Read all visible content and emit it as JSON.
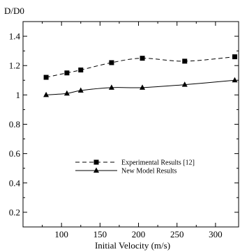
{
  "chart_data": {
    "type": "line",
    "ylabel": "D/D0",
    "xlabel": "Initial Velocity (m/s)",
    "xlim": [
      50,
      330
    ],
    "ylim": [
      0.1,
      1.5
    ],
    "xticks": [
      100,
      150,
      200,
      250,
      300
    ],
    "yticks": [
      0.2,
      0.4,
      0.6,
      0.8,
      1,
      1.2,
      1.4
    ],
    "grid": false,
    "legend_position": "center",
    "series": [
      {
        "name": "Experimental Results [12]",
        "style": "dashed",
        "marker": "square",
        "x": [
          80,
          107,
          125,
          165,
          205,
          260,
          325
        ],
        "y": [
          1.12,
          1.15,
          1.17,
          1.22,
          1.25,
          1.23,
          1.26
        ]
      },
      {
        "name": "New Model Results",
        "style": "solid",
        "marker": "triangle",
        "x": [
          80,
          107,
          125,
          165,
          205,
          260,
          325
        ],
        "y": [
          1.0,
          1.01,
          1.03,
          1.05,
          1.05,
          1.07,
          1.1
        ]
      }
    ]
  }
}
